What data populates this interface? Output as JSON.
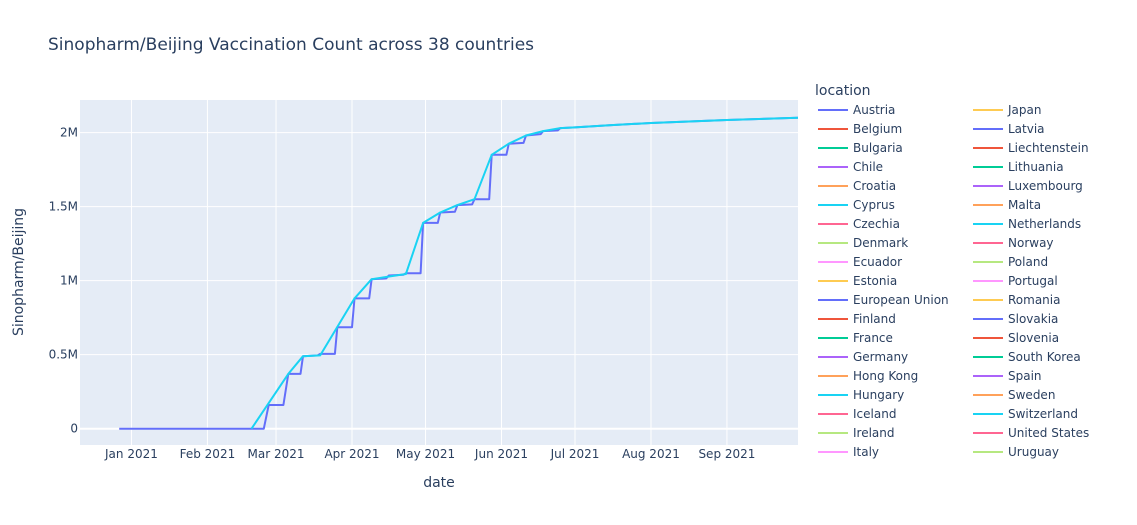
{
  "chart_data": {
    "type": "line",
    "title": "Sinopharm/Beijing Vaccination Count across 38 countries",
    "xlabel": "date",
    "ylabel": "Sinopharm/Beijing",
    "x_tick_labels": [
      "Jan 2021",
      "Feb 2021",
      "Mar 2021",
      "Apr 2021",
      "May 2021",
      "Jun 2021",
      "Jul 2021",
      "Aug 2021",
      "Sep 2021"
    ],
    "x_tick_dates": [
      "2021-01-01",
      "2021-02-01",
      "2021-03-01",
      "2021-04-01",
      "2021-05-01",
      "2021-06-01",
      "2021-07-01",
      "2021-08-01",
      "2021-09-01"
    ],
    "xlim": [
      "2020-12-11",
      "2021-09-30"
    ],
    "y_tick_labels": [
      "0",
      "0.5M",
      "1M",
      "1.5M",
      "2M"
    ],
    "y_tick_values": [
      0,
      500000,
      1000000,
      1500000,
      2000000
    ],
    "ylim": [
      -110000,
      2220000
    ],
    "grid": true,
    "legend_title": "location",
    "legend_placement": "right",
    "series": [
      {
        "name": "Austria",
        "color": "#636efa"
      },
      {
        "name": "Belgium",
        "color": "#EF553B"
      },
      {
        "name": "Bulgaria",
        "color": "#00cc96"
      },
      {
        "name": "Chile",
        "color": "#ab63fa"
      },
      {
        "name": "Croatia",
        "color": "#FFA15A"
      },
      {
        "name": "Cyprus",
        "color": "#19d3f3"
      },
      {
        "name": "Czechia",
        "color": "#FF6692"
      },
      {
        "name": "Denmark",
        "color": "#B6E880"
      },
      {
        "name": "Ecuador",
        "color": "#FF97FF"
      },
      {
        "name": "Estonia",
        "color": "#FECB52"
      },
      {
        "name": "European Union",
        "color": "#636efa",
        "points": [
          [
            "2020-12-27",
            0
          ],
          [
            "2021-02-24",
            0
          ],
          [
            "2021-02-26",
            160000
          ],
          [
            "2021-03-04",
            160000
          ],
          [
            "2021-03-06",
            370000
          ],
          [
            "2021-03-11",
            370000
          ],
          [
            "2021-03-12",
            490000
          ],
          [
            "2021-03-18",
            495000
          ],
          [
            "2021-03-19",
            505000
          ],
          [
            "2021-03-25",
            505000
          ],
          [
            "2021-03-26",
            685000
          ],
          [
            "2021-04-01",
            685000
          ],
          [
            "2021-04-02",
            880000
          ],
          [
            "2021-04-08",
            880000
          ],
          [
            "2021-04-09",
            1010000
          ],
          [
            "2021-04-15",
            1015000
          ],
          [
            "2021-04-16",
            1035000
          ],
          [
            "2021-04-22",
            1040000
          ],
          [
            "2021-04-23",
            1050000
          ],
          [
            "2021-04-29",
            1050000
          ],
          [
            "2021-04-30",
            1390000
          ],
          [
            "2021-05-06",
            1390000
          ],
          [
            "2021-05-07",
            1460000
          ],
          [
            "2021-05-13",
            1465000
          ],
          [
            "2021-05-14",
            1510000
          ],
          [
            "2021-05-20",
            1515000
          ],
          [
            "2021-05-21",
            1550000
          ],
          [
            "2021-05-27",
            1550000
          ],
          [
            "2021-05-28",
            1850000
          ],
          [
            "2021-06-03",
            1850000
          ],
          [
            "2021-06-04",
            1925000
          ],
          [
            "2021-06-10",
            1930000
          ],
          [
            "2021-06-11",
            1980000
          ],
          [
            "2021-06-17",
            1990000
          ],
          [
            "2021-06-18",
            2010000
          ],
          [
            "2021-06-24",
            2015000
          ],
          [
            "2021-06-25",
            2030000
          ],
          [
            "2021-07-01",
            2035000
          ],
          [
            "2021-07-15",
            2050000
          ],
          [
            "2021-08-01",
            2065000
          ],
          [
            "2021-09-01",
            2085000
          ],
          [
            "2021-09-30",
            2100000
          ]
        ]
      },
      {
        "name": "Finland",
        "color": "#EF553B"
      },
      {
        "name": "France",
        "color": "#00cc96"
      },
      {
        "name": "Germany",
        "color": "#ab63fa"
      },
      {
        "name": "Hong Kong",
        "color": "#FFA15A"
      },
      {
        "name": "Hungary",
        "color": "#19d3f3",
        "points": [
          [
            "2021-02-19",
            0
          ],
          [
            "2021-03-06",
            370000
          ],
          [
            "2021-03-12",
            490000
          ],
          [
            "2021-03-19",
            495000
          ],
          [
            "2021-04-02",
            880000
          ],
          [
            "2021-04-09",
            1010000
          ],
          [
            "2021-04-23",
            1045000
          ],
          [
            "2021-04-30",
            1390000
          ],
          [
            "2021-05-07",
            1460000
          ],
          [
            "2021-05-14",
            1510000
          ],
          [
            "2021-05-21",
            1550000
          ],
          [
            "2021-05-28",
            1850000
          ],
          [
            "2021-06-04",
            1925000
          ],
          [
            "2021-06-11",
            1980000
          ],
          [
            "2021-06-18",
            2010000
          ],
          [
            "2021-06-25",
            2030000
          ],
          [
            "2021-07-01",
            2035000
          ],
          [
            "2021-07-15",
            2050000
          ],
          [
            "2021-08-01",
            2065000
          ],
          [
            "2021-09-01",
            2085000
          ],
          [
            "2021-09-30",
            2100000
          ]
        ]
      },
      {
        "name": "Iceland",
        "color": "#FF6692"
      },
      {
        "name": "Ireland",
        "color": "#B6E880"
      },
      {
        "name": "Italy",
        "color": "#FF97FF"
      },
      {
        "name": "Japan",
        "color": "#FECB52"
      },
      {
        "name": "Latvia",
        "color": "#636efa"
      },
      {
        "name": "Liechtenstein",
        "color": "#EF553B"
      },
      {
        "name": "Lithuania",
        "color": "#00cc96"
      },
      {
        "name": "Luxembourg",
        "color": "#ab63fa"
      },
      {
        "name": "Malta",
        "color": "#FFA15A"
      },
      {
        "name": "Netherlands",
        "color": "#19d3f3"
      },
      {
        "name": "Norway",
        "color": "#FF6692"
      },
      {
        "name": "Poland",
        "color": "#B6E880"
      },
      {
        "name": "Portugal",
        "color": "#FF97FF"
      },
      {
        "name": "Romania",
        "color": "#FECB52"
      },
      {
        "name": "Slovakia",
        "color": "#636efa"
      },
      {
        "name": "Slovenia",
        "color": "#EF553B"
      },
      {
        "name": "South Korea",
        "color": "#00cc96"
      },
      {
        "name": "Spain",
        "color": "#ab63fa"
      },
      {
        "name": "Sweden",
        "color": "#FFA15A"
      },
      {
        "name": "Switzerland",
        "color": "#19d3f3"
      },
      {
        "name": "United States",
        "color": "#FF6692"
      },
      {
        "name": "Uruguay",
        "color": "#B6E880"
      }
    ]
  }
}
